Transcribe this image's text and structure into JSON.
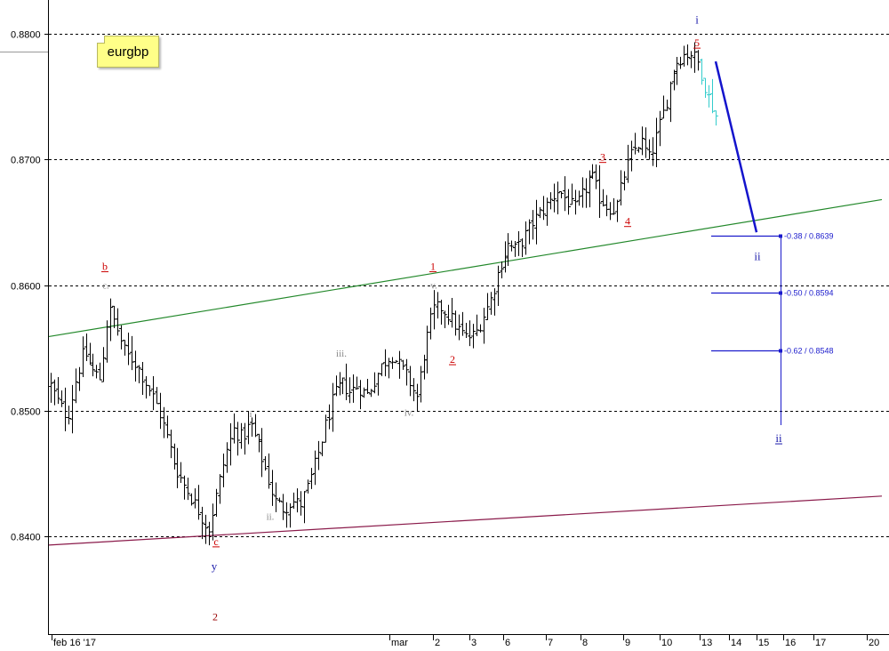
{
  "chart_data": {
    "type": "ohlc",
    "symbol": "eurgbp",
    "y_axis": {
      "range": [
        0.8315,
        0.8825
      ],
      "ticks": [
        "0.8800",
        "0.8700",
        "0.8600",
        "0.8500",
        "0.8400"
      ],
      "gridlines": "dashed"
    },
    "x_axis": {
      "ticks": [
        "feb 16 '17",
        "mar",
        "2",
        "3",
        "6",
        "7",
        "8",
        "9",
        "10",
        "13",
        "14",
        "15",
        "16",
        "17",
        "20"
      ]
    },
    "price_path": [
      0.852,
      0.8505,
      0.8495,
      0.8525,
      0.8548,
      0.8532,
      0.8525,
      0.8582,
      0.8565,
      0.8545,
      0.854,
      0.8528,
      0.8515,
      0.85,
      0.8478,
      0.8455,
      0.8442,
      0.843,
      0.8418,
      0.8405,
      0.8435,
      0.8465,
      0.8485,
      0.8478,
      0.849,
      0.847,
      0.845,
      0.8428,
      0.8422,
      0.8428,
      0.8425,
      0.844,
      0.8462,
      0.8488,
      0.851,
      0.8522,
      0.8515,
      0.852,
      0.8512,
      0.8525,
      0.8538,
      0.8545,
      0.8535,
      0.8525,
      0.851,
      0.855,
      0.858,
      0.8582,
      0.8575,
      0.8565,
      0.8558,
      0.856,
      0.8575,
      0.859,
      0.8615,
      0.8632,
      0.8628,
      0.8638,
      0.865,
      0.8658,
      0.8666,
      0.8676,
      0.8668,
      0.866,
      0.8672,
      0.8688,
      0.867,
      0.8662,
      0.866,
      0.8688,
      0.8706,
      0.8715,
      0.87,
      0.8722,
      0.8745,
      0.8775,
      0.8783,
      0.8785,
      0.8776,
      0.8752,
      0.8735
    ],
    "waves": [
      {
        "label": "b",
        "price": 0.8612,
        "style": "red-underline"
      },
      {
        "label": "c.",
        "price": 0.8597,
        "style": "gray"
      },
      {
        "label": "c",
        "price": 0.8393,
        "style": "red-underline"
      },
      {
        "label": "y",
        "price": 0.8373,
        "style": "blue"
      },
      {
        "label": "2",
        "price": 0.8333,
        "style": "dark-red"
      },
      {
        "label": "i",
        "price": 0.8495,
        "style": "gray"
      },
      {
        "label": "ii.",
        "price": 0.8413,
        "style": "gray"
      },
      {
        "label": "iii.",
        "price": 0.8543,
        "style": "gray"
      },
      {
        "label": "iv.",
        "price": 0.8496,
        "style": "gray"
      },
      {
        "label": "v.",
        "price": 0.8597,
        "style": "gray"
      },
      {
        "label": "1",
        "price": 0.8612,
        "style": "red-underline"
      },
      {
        "label": "2",
        "price": 0.8538,
        "style": "red-underline"
      },
      {
        "label": "3",
        "price": 0.8699,
        "style": "red-underline"
      },
      {
        "label": "4",
        "price": 0.8648,
        "style": "red-underline"
      },
      {
        "label": "5",
        "price": 0.879,
        "style": "red-underline"
      },
      {
        "label": "i",
        "price": 0.8808,
        "style": "blue"
      },
      {
        "label": "ii",
        "price": 0.862,
        "style": "blue-small"
      },
      {
        "label": "ii",
        "price": 0.8475,
        "style": "blue-underline"
      }
    ],
    "fib_levels": [
      {
        "label": "-0.38 / 0.8639",
        "price": 0.8639
      },
      {
        "label": "-0.50 / 0.8594",
        "price": 0.8594
      },
      {
        "label": "-0.62 / 0.8548",
        "price": 0.8548
      }
    ],
    "colors": {
      "bars": "#000000",
      "upper_trendline": "#22882a",
      "lower_trendline": "#8a1a4a",
      "projection": "#1414cc",
      "fib": "#1a1acc",
      "highlight": "#33cccc",
      "note": "#ffff88"
    }
  }
}
